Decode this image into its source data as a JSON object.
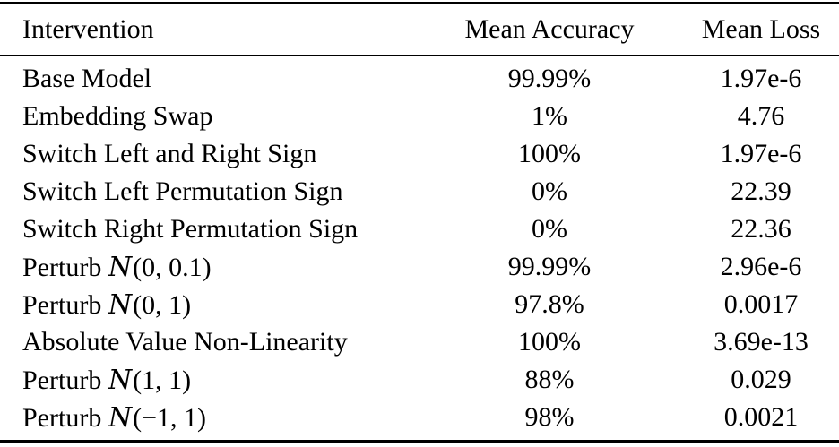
{
  "table": {
    "columns": [
      "Intervention",
      "Mean Accuracy",
      "Mean Loss"
    ],
    "rows": [
      {
        "intervention": "Base Model",
        "mean_accuracy": "99.99%",
        "mean_loss": "1.97e-6"
      },
      {
        "intervention": "Embedding Swap",
        "mean_accuracy": "1%",
        "mean_loss": "4.76"
      },
      {
        "intervention": "Switch Left and Right Sign",
        "mean_accuracy": "100%",
        "mean_loss": "1.97e-6"
      },
      {
        "intervention": "Switch Left Permutation Sign",
        "mean_accuracy": "0%",
        "mean_loss": "22.39"
      },
      {
        "intervention": "Switch Right Permutation Sign",
        "mean_accuracy": "0%",
        "mean_loss": "22.36"
      },
      {
        "intervention": "Perturb 𝒩(0, 0.1)",
        "mean_accuracy": "99.99%",
        "mean_loss": "2.96e-6"
      },
      {
        "intervention": "Perturb 𝒩(0, 1)",
        "mean_accuracy": "97.8%",
        "mean_loss": "0.0017"
      },
      {
        "intervention": "Absolute Value Non-Linearity",
        "mean_accuracy": "100%",
        "mean_loss": "3.69e-13"
      },
      {
        "intervention": "Perturb 𝒩(1, 1)",
        "mean_accuracy": "88%",
        "mean_loss": "0.029"
      },
      {
        "intervention": "Perturb 𝒩(−1, 1)",
        "mean_accuracy": "98%",
        "mean_loss": "0.0021"
      }
    ],
    "text_color": "#000000",
    "rule_color": "#000000"
  }
}
